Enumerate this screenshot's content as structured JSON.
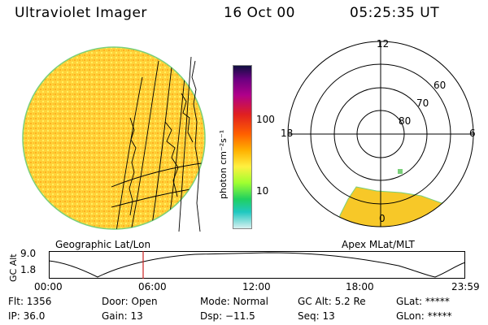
{
  "header": {
    "title": "Ultraviolet Imager",
    "date": "16 Oct 00",
    "time": "05:25:35 UT"
  },
  "colorbar": {
    "unit_label": "photon cm⁻²s⁻¹",
    "ticks": [
      "100",
      "10"
    ]
  },
  "polar": {
    "mlt_labels": [
      "12",
      "18",
      "6",
      "0"
    ],
    "lat_labels": [
      "60",
      "70",
      "80"
    ]
  },
  "panel_labels": {
    "left": "Geographic Lat/Lon",
    "right": "Apex MLat/MLT"
  },
  "altitude_plot": {
    "ylabel": "GC Alt",
    "yticks": [
      "9.0",
      "1.8"
    ],
    "xticks": [
      "00:00",
      "06:00",
      "12:00",
      "18:00",
      "23:59"
    ],
    "marker_time": "05:25:35"
  },
  "footer": {
    "flt": "Flt: 1356",
    "ip": "IP: 36.0",
    "door": "Door: Open",
    "gain": "Gain: 13",
    "mode": "Mode: Normal",
    "dsp": "Dsp:  −11.5",
    "gcalt": "GC Alt: 5.2 Re",
    "seq": "Seq: 13",
    "glat": "GLat: *****",
    "glon": "GLon: *****"
  },
  "colors": {
    "disk_base": "#ffd030",
    "aurora": "#f0c020",
    "limb": "#7ad07a",
    "marker": "#cc2020"
  }
}
